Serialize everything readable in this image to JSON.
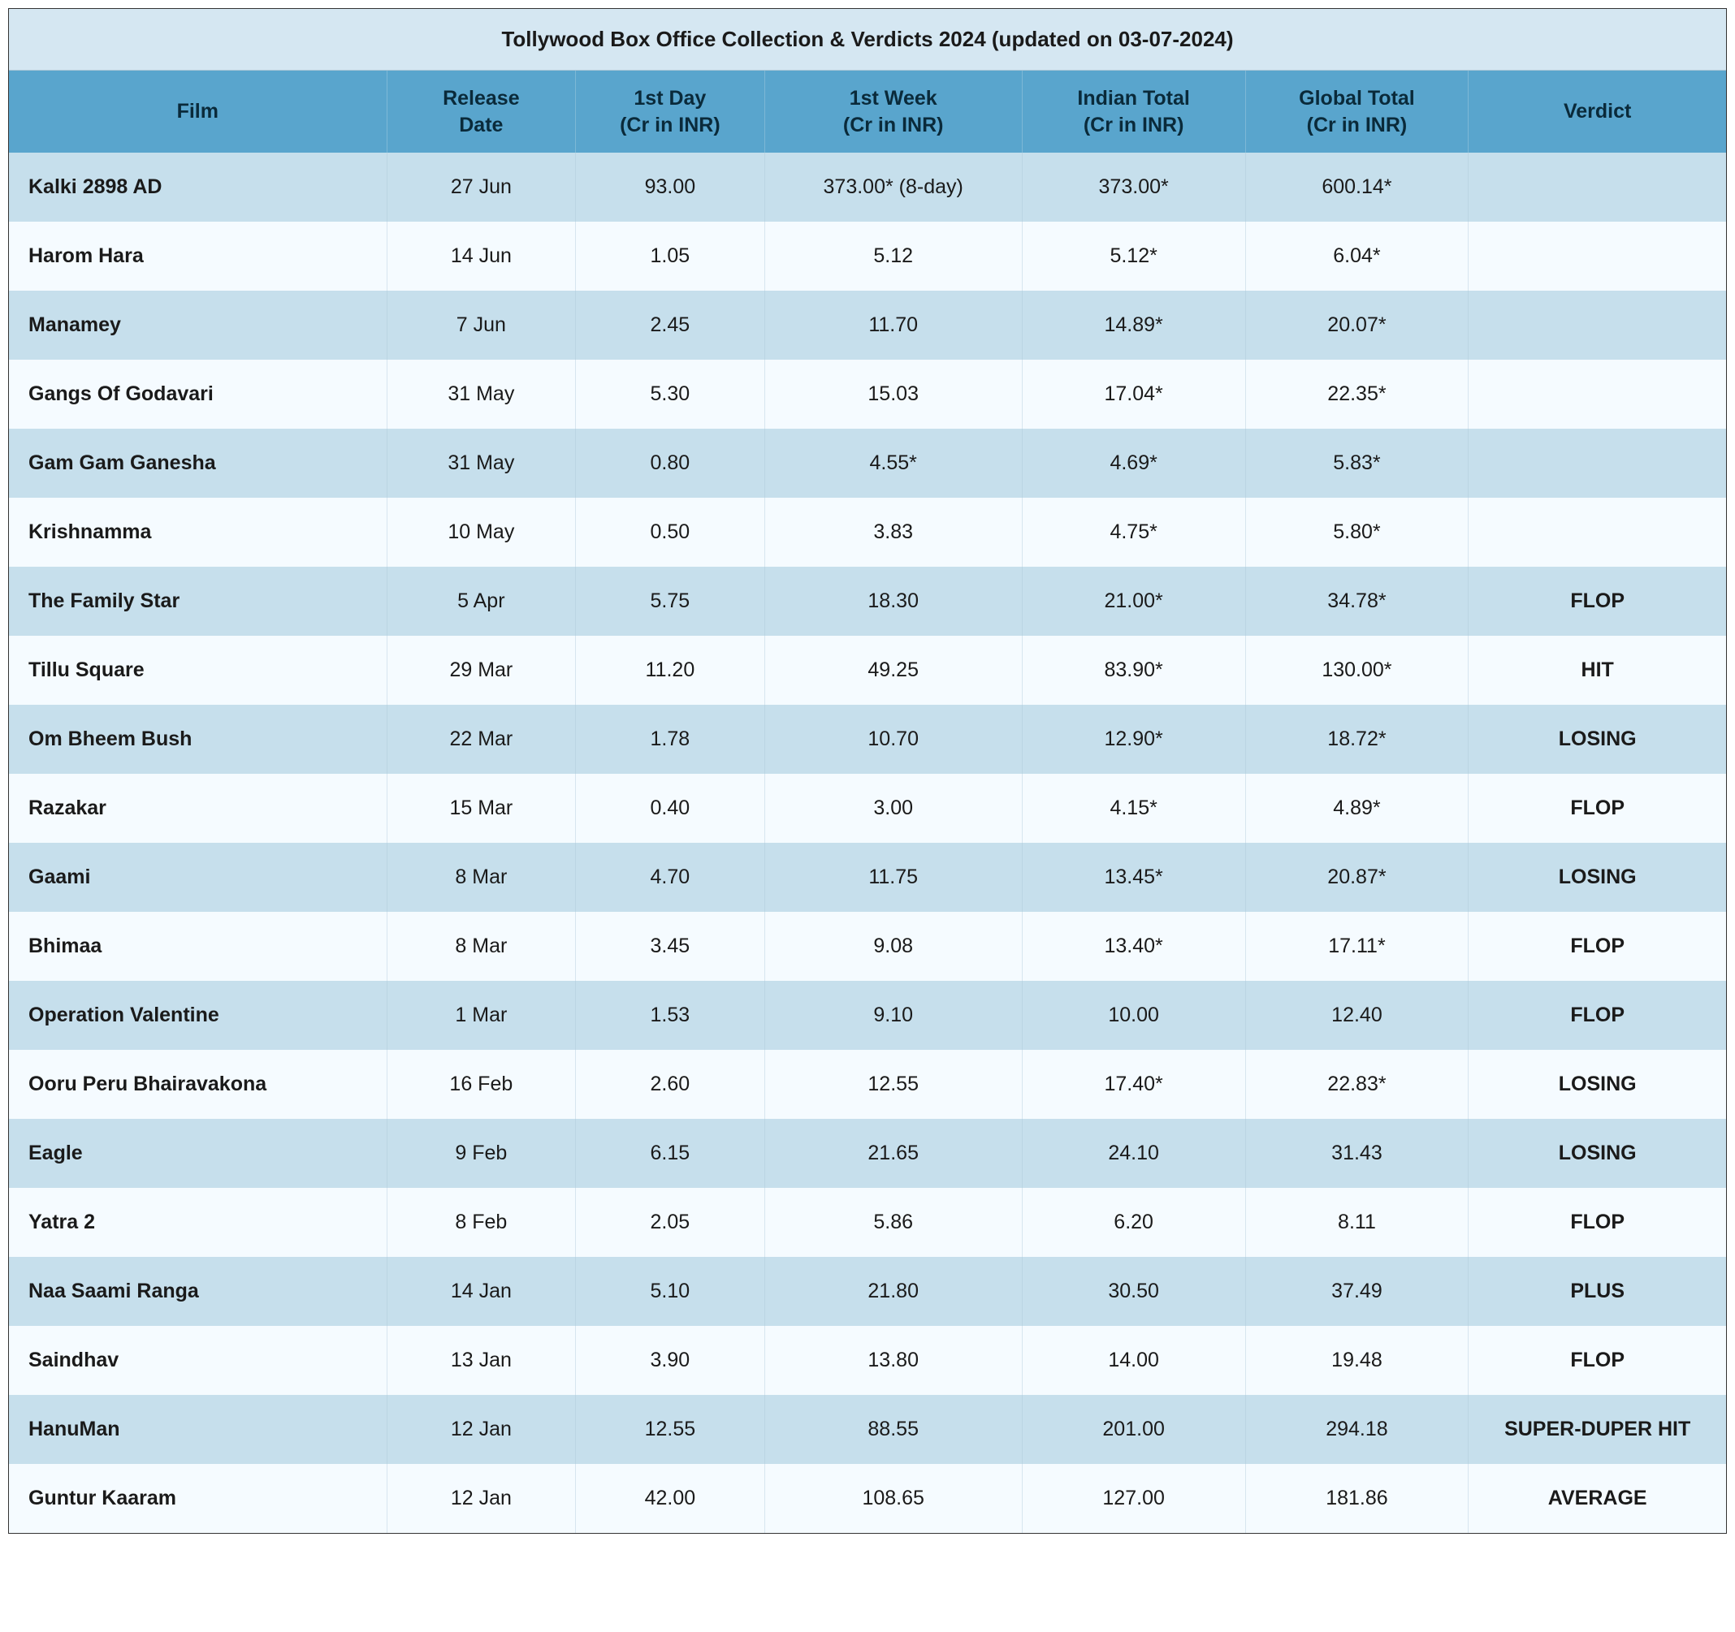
{
  "title": "Tollywood Box Office Collection & Verdicts 2024 (updated on 03-07-2024)",
  "colors": {
    "title_bg": "#d5e7f2",
    "header_bg": "#59a5cd",
    "row_odd_bg": "#c6dfec",
    "row_even_bg": "#f5fbff",
    "text": "#1a1a1a",
    "header_text": "#0a2a3a"
  },
  "columns": [
    {
      "key": "film",
      "label": "Film",
      "class": "col-film"
    },
    {
      "key": "release",
      "label": "Release\nDate",
      "class": "col-date"
    },
    {
      "key": "day1",
      "label": "1st Day\n(Cr in INR)",
      "class": "col-day1"
    },
    {
      "key": "week1",
      "label": "1st Week\n(Cr in INR)",
      "class": "col-week1"
    },
    {
      "key": "indian",
      "label": "Indian Total\n(Cr in INR)",
      "class": "col-indian"
    },
    {
      "key": "global",
      "label": "Global Total\n(Cr in INR)",
      "class": "col-global"
    },
    {
      "key": "verdict",
      "label": "Verdict",
      "class": "col-verdict"
    }
  ],
  "rows": [
    {
      "film": "Kalki 2898 AD",
      "release": "27 Jun",
      "day1": "93.00",
      "week1": "373.00* (8-day)",
      "indian": "373.00*",
      "global": "600.14*",
      "verdict": ""
    },
    {
      "film": "Harom Hara",
      "release": "14 Jun",
      "day1": "1.05",
      "week1": "5.12",
      "indian": "5.12*",
      "global": "6.04*",
      "verdict": ""
    },
    {
      "film": "Manamey",
      "release": "7 Jun",
      "day1": "2.45",
      "week1": "11.70",
      "indian": "14.89*",
      "global": "20.07*",
      "verdict": ""
    },
    {
      "film": "Gangs Of Godavari",
      "release": "31 May",
      "day1": "5.30",
      "week1": "15.03",
      "indian": "17.04*",
      "global": "22.35*",
      "verdict": ""
    },
    {
      "film": "Gam Gam Ganesha",
      "release": "31 May",
      "day1": "0.80",
      "week1": "4.55*",
      "indian": "4.69*",
      "global": "5.83*",
      "verdict": ""
    },
    {
      "film": "Krishnamma",
      "release": "10 May",
      "day1": "0.50",
      "week1": "3.83",
      "indian": "4.75*",
      "global": "5.80*",
      "verdict": ""
    },
    {
      "film": "The Family Star",
      "release": "5 Apr",
      "day1": "5.75",
      "week1": "18.30",
      "indian": "21.00*",
      "global": "34.78*",
      "verdict": "FLOP"
    },
    {
      "film": "Tillu Square",
      "release": "29 Mar",
      "day1": "11.20",
      "week1": "49.25",
      "indian": "83.90*",
      "global": "130.00*",
      "verdict": "HIT"
    },
    {
      "film": "Om Bheem Bush",
      "release": "22 Mar",
      "day1": "1.78",
      "week1": "10.70",
      "indian": "12.90*",
      "global": "18.72*",
      "verdict": "LOSING"
    },
    {
      "film": "Razakar",
      "release": "15 Mar",
      "day1": "0.40",
      "week1": "3.00",
      "indian": "4.15*",
      "global": "4.89*",
      "verdict": "FLOP"
    },
    {
      "film": "Gaami",
      "release": "8 Mar",
      "day1": "4.70",
      "week1": "11.75",
      "indian": "13.45*",
      "global": "20.87*",
      "verdict": "LOSING"
    },
    {
      "film": "Bhimaa",
      "release": "8 Mar",
      "day1": "3.45",
      "week1": "9.08",
      "indian": "13.40*",
      "global": "17.11*",
      "verdict": "FLOP"
    },
    {
      "film": "Operation Valentine",
      "release": "1 Mar",
      "day1": "1.53",
      "week1": "9.10",
      "indian": "10.00",
      "global": "12.40",
      "verdict": "FLOP"
    },
    {
      "film": "Ooru Peru Bhairavakona",
      "release": "16 Feb",
      "day1": "2.60",
      "week1": "12.55",
      "indian": "17.40*",
      "global": "22.83*",
      "verdict": "LOSING"
    },
    {
      "film": "Eagle",
      "release": "9 Feb",
      "day1": "6.15",
      "week1": "21.65",
      "indian": "24.10",
      "global": "31.43",
      "verdict": "LOSING"
    },
    {
      "film": "Yatra 2",
      "release": "8 Feb",
      "day1": "2.05",
      "week1": "5.86",
      "indian": "6.20",
      "global": "8.11",
      "verdict": "FLOP"
    },
    {
      "film": "Naa Saami Ranga",
      "release": "14 Jan",
      "day1": "5.10",
      "week1": "21.80",
      "indian": "30.50",
      "global": "37.49",
      "verdict": "PLUS"
    },
    {
      "film": "Saindhav",
      "release": "13 Jan",
      "day1": "3.90",
      "week1": "13.80",
      "indian": "14.00",
      "global": "19.48",
      "verdict": "FLOP"
    },
    {
      "film": "HanuMan",
      "release": "12 Jan",
      "day1": "12.55",
      "week1": "88.55",
      "indian": "201.00",
      "global": "294.18",
      "verdict": "SUPER-DUPER HIT"
    },
    {
      "film": "Guntur Kaaram",
      "release": "12 Jan",
      "day1": "42.00",
      "week1": "108.65",
      "indian": "127.00",
      "global": "181.86",
      "verdict": "AVERAGE"
    }
  ]
}
